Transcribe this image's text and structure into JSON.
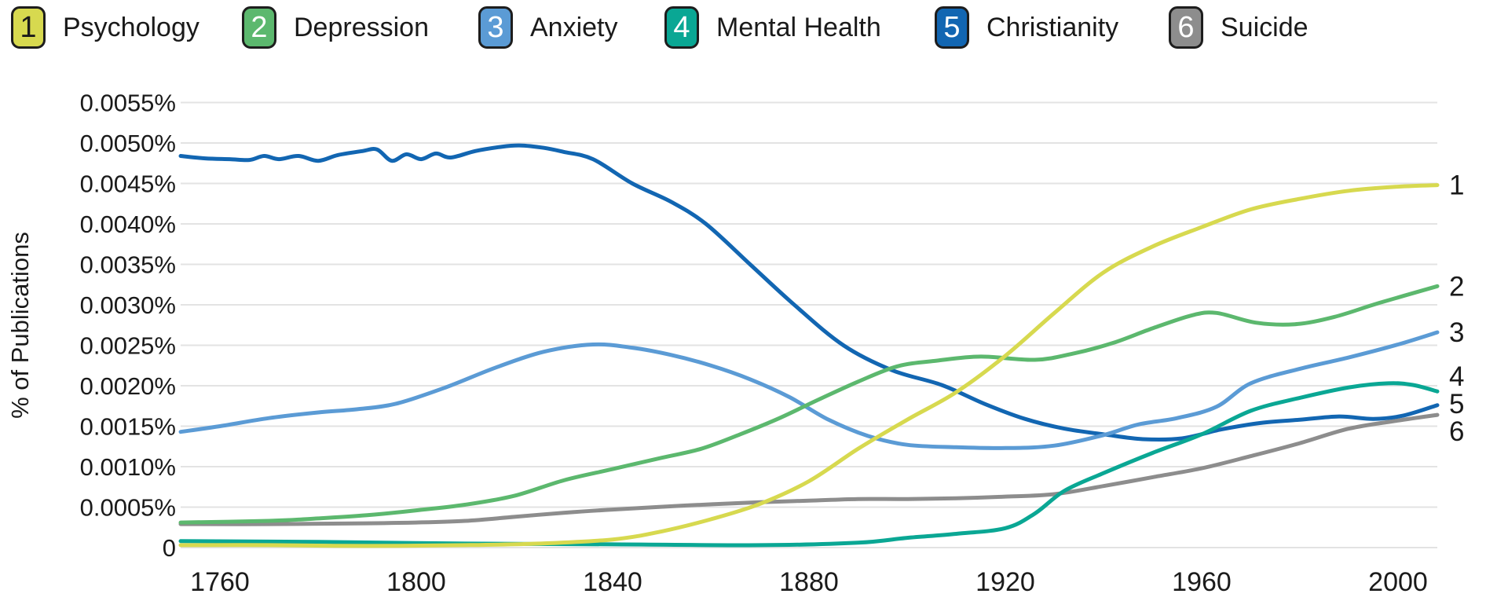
{
  "accent_colors": {
    "grid": "#e3e3e3",
    "text": "#1a1a1a",
    "background": "#ffffff"
  },
  "legend": {
    "items": [
      {
        "number": "1",
        "label": "Psychology",
        "color": "#d7d94f",
        "number_color": "#1a1a1a"
      },
      {
        "number": "2",
        "label": "Depression",
        "color": "#5cb86e",
        "number_color": "#ffffff"
      },
      {
        "number": "3",
        "label": "Anxiety",
        "color": "#5b9bd5",
        "number_color": "#ffffff"
      },
      {
        "number": "4",
        "label": "Mental Health",
        "color": "#0aa794",
        "number_color": "#ffffff"
      },
      {
        "number": "5",
        "label": "Christianity",
        "color": "#1266b2",
        "number_color": "#ffffff"
      },
      {
        "number": "6",
        "label": "Suicide",
        "color": "#8d8d8d",
        "number_color": "#ffffff"
      }
    ]
  },
  "y_axis": {
    "title": "% of Publications",
    "ticks": [
      {
        "value": 0.0055,
        "label": "0.0055%"
      },
      {
        "value": 0.005,
        "label": "0.0050%"
      },
      {
        "value": 0.0045,
        "label": "0.0045%"
      },
      {
        "value": 0.004,
        "label": "0.0040%"
      },
      {
        "value": 0.0035,
        "label": "0.0035%"
      },
      {
        "value": 0.003,
        "label": "0.0030%"
      },
      {
        "value": 0.0025,
        "label": "0.0025%"
      },
      {
        "value": 0.002,
        "label": "0.0020%"
      },
      {
        "value": 0.0015,
        "label": "0.0015%"
      },
      {
        "value": 0.001,
        "label": "0.0010%"
      },
      {
        "value": 0.0005,
        "label": "0.0005%"
      },
      {
        "value": 0,
        "label": "0"
      }
    ]
  },
  "x_axis": {
    "ticks": [
      {
        "value": 1760,
        "label": "1760"
      },
      {
        "value": 1800,
        "label": "1800"
      },
      {
        "value": 1840,
        "label": "1840"
      },
      {
        "value": 1880,
        "label": "1880"
      },
      {
        "value": 1920,
        "label": "1920"
      },
      {
        "value": 1960,
        "label": "1960"
      },
      {
        "value": 2000,
        "label": "2000"
      }
    ]
  },
  "chart_data": {
    "type": "line",
    "title": "",
    "xlabel": "",
    "ylabel": "% of Publications",
    "xlim": [
      1752,
      2008
    ],
    "ylim": [
      0,
      0.0055
    ],
    "grid": true,
    "legend_position": "top",
    "series": [
      {
        "name": "Psychology",
        "end_label": "1",
        "color": "#d7d94f",
        "points": [
          [
            1752,
            3e-05
          ],
          [
            1770,
            3e-05
          ],
          [
            1790,
            2e-05
          ],
          [
            1810,
            3e-05
          ],
          [
            1825,
            5e-05
          ],
          [
            1840,
            0.0001
          ],
          [
            1850,
            0.0002
          ],
          [
            1860,
            0.00035
          ],
          [
            1870,
            0.00054
          ],
          [
            1880,
            0.00082
          ],
          [
            1890,
            0.00122
          ],
          [
            1900,
            0.00158
          ],
          [
            1910,
            0.00192
          ],
          [
            1920,
            0.00237
          ],
          [
            1930,
            0.0029
          ],
          [
            1940,
            0.0034
          ],
          [
            1950,
            0.00372
          ],
          [
            1960,
            0.00396
          ],
          [
            1970,
            0.00418
          ],
          [
            1980,
            0.00431
          ],
          [
            1990,
            0.00441
          ],
          [
            2000,
            0.00446
          ],
          [
            2008,
            0.00448
          ]
        ]
      },
      {
        "name": "Depression",
        "end_label": "2",
        "color": "#5cb86e",
        "points": [
          [
            1752,
            0.00031
          ],
          [
            1770,
            0.00033
          ],
          [
            1780,
            0.00036
          ],
          [
            1790,
            0.0004
          ],
          [
            1800,
            0.00046
          ],
          [
            1810,
            0.00053
          ],
          [
            1820,
            0.00064
          ],
          [
            1830,
            0.00083
          ],
          [
            1840,
            0.00097
          ],
          [
            1850,
            0.00111
          ],
          [
            1858,
            0.00122
          ],
          [
            1866,
            0.0014
          ],
          [
            1874,
            0.0016
          ],
          [
            1882,
            0.00183
          ],
          [
            1890,
            0.00205
          ],
          [
            1898,
            0.00224
          ],
          [
            1906,
            0.00231
          ],
          [
            1915,
            0.00236
          ],
          [
            1926,
            0.00232
          ],
          [
            1934,
            0.0024
          ],
          [
            1942,
            0.00253
          ],
          [
            1950,
            0.00271
          ],
          [
            1958,
            0.00287
          ],
          [
            1963,
            0.0029
          ],
          [
            1971,
            0.00278
          ],
          [
            1979,
            0.00276
          ],
          [
            1987,
            0.00285
          ],
          [
            1996,
            0.00302
          ],
          [
            2008,
            0.00323
          ]
        ]
      },
      {
        "name": "Anxiety",
        "end_label": "3",
        "color": "#5b9bd5",
        "points": [
          [
            1752,
            0.00143
          ],
          [
            1760,
            0.0015
          ],
          [
            1770,
            0.0016
          ],
          [
            1780,
            0.00167
          ],
          [
            1788,
            0.00171
          ],
          [
            1796,
            0.00178
          ],
          [
            1806,
            0.00198
          ],
          [
            1816,
            0.00222
          ],
          [
            1826,
            0.00242
          ],
          [
            1836,
            0.00251
          ],
          [
            1844,
            0.00247
          ],
          [
            1852,
            0.00238
          ],
          [
            1860,
            0.00225
          ],
          [
            1868,
            0.00208
          ],
          [
            1876,
            0.00186
          ],
          [
            1884,
            0.00158
          ],
          [
            1892,
            0.00138
          ],
          [
            1900,
            0.00127
          ],
          [
            1910,
            0.00124
          ],
          [
            1920,
            0.00123
          ],
          [
            1930,
            0.00126
          ],
          [
            1940,
            0.00139
          ],
          [
            1947,
            0.00152
          ],
          [
            1955,
            0.0016
          ],
          [
            1963,
            0.00174
          ],
          [
            1970,
            0.00203
          ],
          [
            1980,
            0.00221
          ],
          [
            1990,
            0.00235
          ],
          [
            2000,
            0.00251
          ],
          [
            2008,
            0.00266
          ]
        ]
      },
      {
        "name": "Mental Health",
        "end_label": "4",
        "color": "#0aa794",
        "points": [
          [
            1752,
            8e-05
          ],
          [
            1780,
            7e-05
          ],
          [
            1810,
            5e-05
          ],
          [
            1840,
            4e-05
          ],
          [
            1870,
            3e-05
          ],
          [
            1890,
            6e-05
          ],
          [
            1900,
            0.00012
          ],
          [
            1910,
            0.00017
          ],
          [
            1920,
            0.00024
          ],
          [
            1926,
            0.00042
          ],
          [
            1932,
            0.0007
          ],
          [
            1940,
            0.00092
          ],
          [
            1950,
            0.00117
          ],
          [
            1960,
            0.0014
          ],
          [
            1970,
            0.00169
          ],
          [
            1980,
            0.00185
          ],
          [
            1990,
            0.00198
          ],
          [
            1998,
            0.00203
          ],
          [
            2003,
            0.00201
          ],
          [
            2008,
            0.00193
          ]
        ]
      },
      {
        "name": "Christianity",
        "end_label": "5",
        "color": "#1266b2",
        "points": [
          [
            1752,
            0.00484
          ],
          [
            1757,
            0.00481
          ],
          [
            1762,
            0.0048
          ],
          [
            1766,
            0.00479
          ],
          [
            1769,
            0.00484
          ],
          [
            1772,
            0.0048
          ],
          [
            1776,
            0.00484
          ],
          [
            1780,
            0.00478
          ],
          [
            1784,
            0.00485
          ],
          [
            1789,
            0.0049
          ],
          [
            1792,
            0.00492
          ],
          [
            1795,
            0.00478
          ],
          [
            1798,
            0.00486
          ],
          [
            1801,
            0.0048
          ],
          [
            1804,
            0.00487
          ],
          [
            1807,
            0.00482
          ],
          [
            1812,
            0.0049
          ],
          [
            1817,
            0.00495
          ],
          [
            1821,
            0.00497
          ],
          [
            1826,
            0.00494
          ],
          [
            1830,
            0.00489
          ],
          [
            1836,
            0.0048
          ],
          [
            1844,
            0.0045
          ],
          [
            1852,
            0.00427
          ],
          [
            1859,
            0.004
          ],
          [
            1868,
            0.0035
          ],
          [
            1877,
            0.003
          ],
          [
            1887,
            0.0025
          ],
          [
            1897,
            0.00219
          ],
          [
            1907,
            0.00201
          ],
          [
            1916,
            0.00177
          ],
          [
            1924,
            0.00159
          ],
          [
            1932,
            0.00147
          ],
          [
            1940,
            0.0014
          ],
          [
            1948,
            0.00134
          ],
          [
            1956,
            0.00135
          ],
          [
            1964,
            0.00146
          ],
          [
            1972,
            0.00154
          ],
          [
            1980,
            0.00158
          ],
          [
            1988,
            0.00162
          ],
          [
            1995,
            0.00159
          ],
          [
            2001,
            0.00163
          ],
          [
            2008,
            0.00176
          ]
        ]
      },
      {
        "name": "Suicide",
        "end_label": "6",
        "color": "#8d8d8d",
        "points": [
          [
            1752,
            0.00029
          ],
          [
            1770,
            0.00029
          ],
          [
            1790,
            0.0003
          ],
          [
            1800,
            0.00031
          ],
          [
            1810,
            0.00033
          ],
          [
            1820,
            0.00038
          ],
          [
            1830,
            0.00043
          ],
          [
            1840,
            0.00047
          ],
          [
            1855,
            0.00052
          ],
          [
            1870,
            0.00056
          ],
          [
            1880,
            0.00058
          ],
          [
            1890,
            0.0006
          ],
          [
            1900,
            0.0006
          ],
          [
            1910,
            0.00061
          ],
          [
            1920,
            0.00063
          ],
          [
            1930,
            0.00066
          ],
          [
            1940,
            0.00076
          ],
          [
            1950,
            0.00087
          ],
          [
            1960,
            0.00098
          ],
          [
            1970,
            0.00113
          ],
          [
            1980,
            0.00129
          ],
          [
            1990,
            0.00147
          ],
          [
            2000,
            0.00157
          ],
          [
            2008,
            0.00164
          ]
        ]
      }
    ]
  }
}
